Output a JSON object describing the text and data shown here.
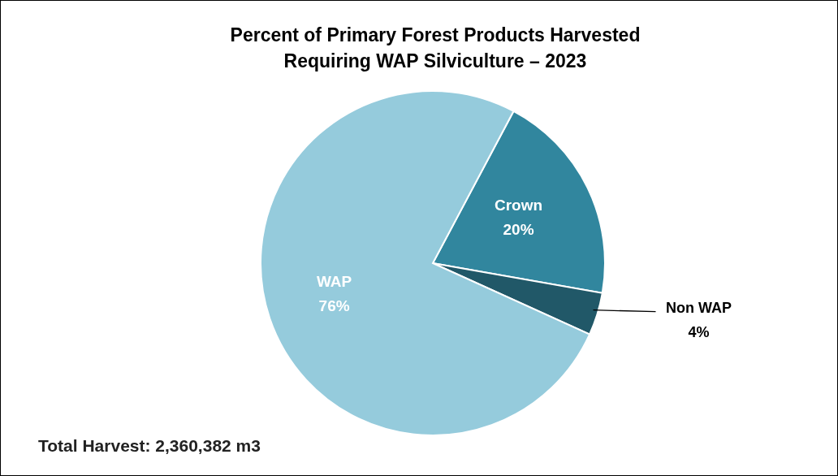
{
  "chart_data": {
    "type": "pie",
    "title": "Percent of Primary Forest Products Harvested\nRequiring WAP Silviculture – 2023",
    "categories": [
      "Crown",
      "Non WAP",
      "WAP"
    ],
    "values": [
      20,
      4,
      76
    ],
    "colors": [
      "#31869e",
      "#215868",
      "#95cbdc"
    ],
    "value_labels": [
      "20%",
      "4%",
      "76%"
    ],
    "annotations": [
      "Total Harvest: 2,360,382 m3"
    ]
  }
}
